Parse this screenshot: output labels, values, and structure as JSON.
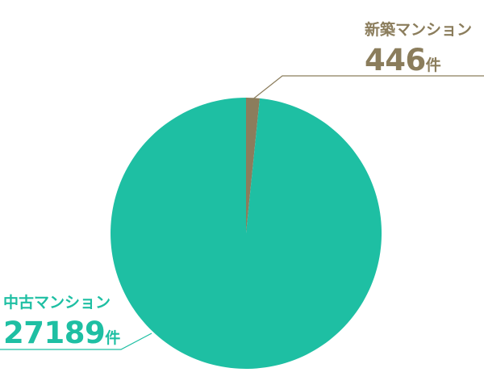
{
  "chart_data": {
    "type": "pie",
    "slices": [
      {
        "label": "新築マンション",
        "value": 446,
        "unit": "件",
        "value_text": "446",
        "color": "#8b7d5c"
      },
      {
        "label": "中古マンション",
        "value": 27189,
        "unit": "件",
        "value_text": "27189",
        "color": "#1ebfa3"
      }
    ],
    "start_angle_deg": 0,
    "direction": "clockwise",
    "leader_line_colors": {
      "新築マンション": "#8b7d5c",
      "中古マンション": "#1ebfa3"
    }
  }
}
